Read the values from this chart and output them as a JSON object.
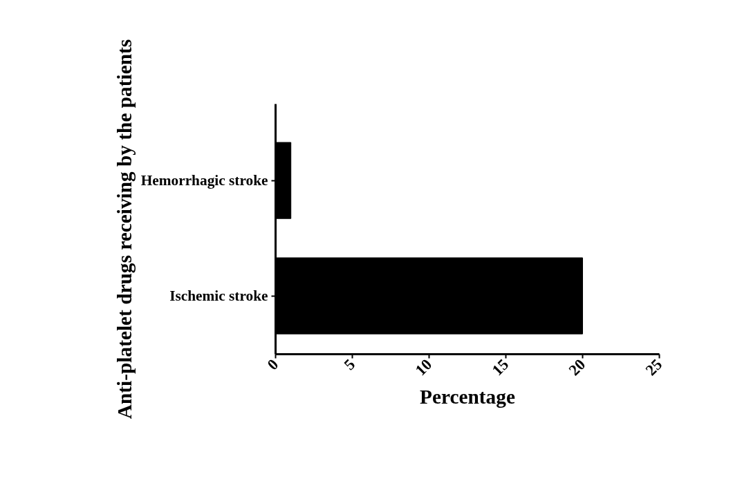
{
  "chart_data": {
    "type": "bar",
    "orientation": "horizontal",
    "categories": [
      "Hemorrhagic stroke",
      "Ischemic stroke"
    ],
    "values": [
      1,
      20
    ],
    "color": "#000000",
    "xlabel": "Percentage",
    "ylabel": "Anti-platelet drugs receiving by the patients",
    "xlim": [
      0,
      25
    ],
    "xticks": [
      0,
      5,
      10,
      15,
      20,
      25
    ],
    "grid": false
  }
}
